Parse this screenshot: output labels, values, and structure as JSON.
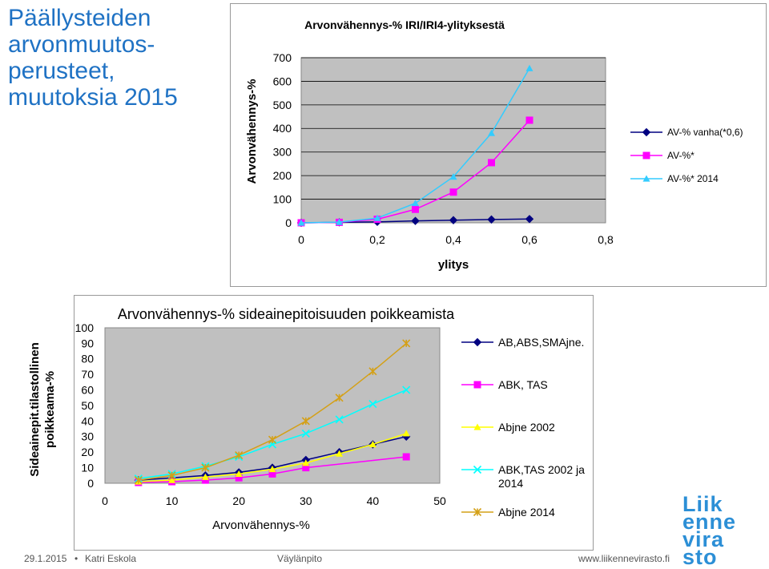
{
  "slide": {
    "title_lines": [
      "Päällysteiden",
      "arvonmuutos-",
      "perusteet,",
      "muutoksia  2015"
    ]
  },
  "footer": {
    "date": "29.1.2015",
    "bullet": "•",
    "author": "Katri Eskola",
    "dept": "Väylänpito",
    "url": "www.liikennevirasto.fi"
  },
  "logo": {
    "lines": [
      "Liik",
      "enne",
      "vira",
      "sto"
    ]
  },
  "colors": {
    "navy": "#000080",
    "magenta": "#ff00ff",
    "skyblue": "#33ccff",
    "yellow": "#ffff00",
    "cyan": "#00ffff",
    "orange": "#d4a017",
    "plot_bg": "#c0c0c0",
    "title_blue": "#1f72c4"
  },
  "chart_data": [
    {
      "type": "line",
      "title": "Arvonvähennys-% IRI/IRI4-ylityksestä",
      "xlabel": "ylitys",
      "ylabel": "Arvonvähennys-%",
      "xlim": [
        0,
        0.8
      ],
      "ylim": [
        0,
        700
      ],
      "xticks": [
        "0",
        "0,2",
        "0,4",
        "0,6",
        "0,8"
      ],
      "yticks": [
        "0",
        "100",
        "200",
        "300",
        "400",
        "500",
        "600",
        "700"
      ],
      "grid": "horizontal",
      "legend": "right",
      "series": [
        {
          "name": "AV-% vanha(*0,6)",
          "marker": "diamond",
          "color": "#000080",
          "x": [
            0,
            0.1,
            0.2,
            0.3,
            0.4,
            0.5,
            0.6
          ],
          "y": [
            0,
            2,
            4,
            8,
            11,
            14,
            16
          ]
        },
        {
          "name": "AV-%*",
          "marker": "square",
          "color": "#ff00ff",
          "x": [
            0,
            0.1,
            0.2,
            0.3,
            0.4,
            0.5,
            0.6
          ],
          "y": [
            0,
            2,
            15,
            57,
            130,
            255,
            435
          ]
        },
        {
          "name": "AV-%* 2014",
          "marker": "triangle",
          "color": "#33ccff",
          "x": [
            0,
            0.1,
            0.2,
            0.3,
            0.4,
            0.5,
            0.6
          ],
          "y": [
            0,
            3,
            20,
            83,
            195,
            380,
            655
          ]
        }
      ]
    },
    {
      "type": "line",
      "title": "Arvonvähennys-% sideainepitoisuuden poikkeamista",
      "xlabel": "Arvonvähennys-%",
      "ylabel": [
        "Sideainepit.tilastollinen",
        "poikkeama-%"
      ],
      "xlim": [
        0,
        50
      ],
      "ylim": [
        0,
        100
      ],
      "xticks": [
        "0",
        "10",
        "20",
        "30",
        "40",
        "50"
      ],
      "yticks": [
        "0",
        "10",
        "20",
        "30",
        "40",
        "50",
        "60",
        "70",
        "80",
        "90",
        "100"
      ],
      "grid": "none",
      "legend": "right",
      "series": [
        {
          "name": "AB,ABS,SMAjne.",
          "marker": "diamond",
          "color": "#000080",
          "x": [
            5,
            10,
            15,
            20,
            25,
            30,
            35,
            40,
            45
          ],
          "y": [
            2,
            3.5,
            5,
            7,
            10,
            15,
            20,
            25,
            30
          ]
        },
        {
          "name": "ABK, TAS",
          "marker": "square",
          "color": "#ff00ff",
          "x": [
            5,
            10,
            15,
            20,
            25,
            30,
            45
          ],
          "y": [
            0.5,
            1,
            2,
            3.5,
            6,
            10,
            17
          ]
        },
        {
          "name": "Abjne 2002",
          "marker": "triangle",
          "color": "#ffff00",
          "x": [
            5,
            10,
            15,
            20,
            25,
            30,
            35,
            40,
            45
          ],
          "y": [
            1,
            2,
            4,
            6,
            9,
            13,
            19,
            25,
            32
          ]
        },
        {
          "name": "ABK,TAS 2002 ja 2014",
          "marker": "x",
          "color": "#00ffff",
          "x": [
            5,
            10,
            15,
            20,
            25,
            30,
            35,
            40,
            45
          ],
          "y": [
            3,
            6,
            11,
            17,
            25,
            32,
            41,
            51,
            60
          ]
        },
        {
          "name": "Abjne 2014",
          "marker": "star",
          "color": "#d4a017",
          "x": [
            5,
            10,
            15,
            20,
            25,
            30,
            35,
            40,
            45
          ],
          "y": [
            2,
            5,
            10,
            18,
            28,
            40,
            55,
            72,
            90
          ]
        }
      ]
    }
  ]
}
